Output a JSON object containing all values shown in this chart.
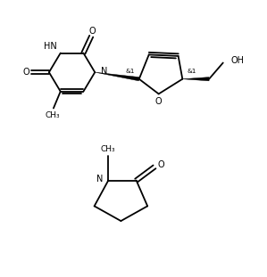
{
  "background_color": "#ffffff",
  "line_color": "#000000",
  "lw": 1.3,
  "fs": 7.0,
  "fig_width": 2.99,
  "fig_height": 3.11,
  "dpi": 100,
  "xlim": [
    0,
    9.5
  ],
  "ylim": [
    0,
    10.2
  ]
}
